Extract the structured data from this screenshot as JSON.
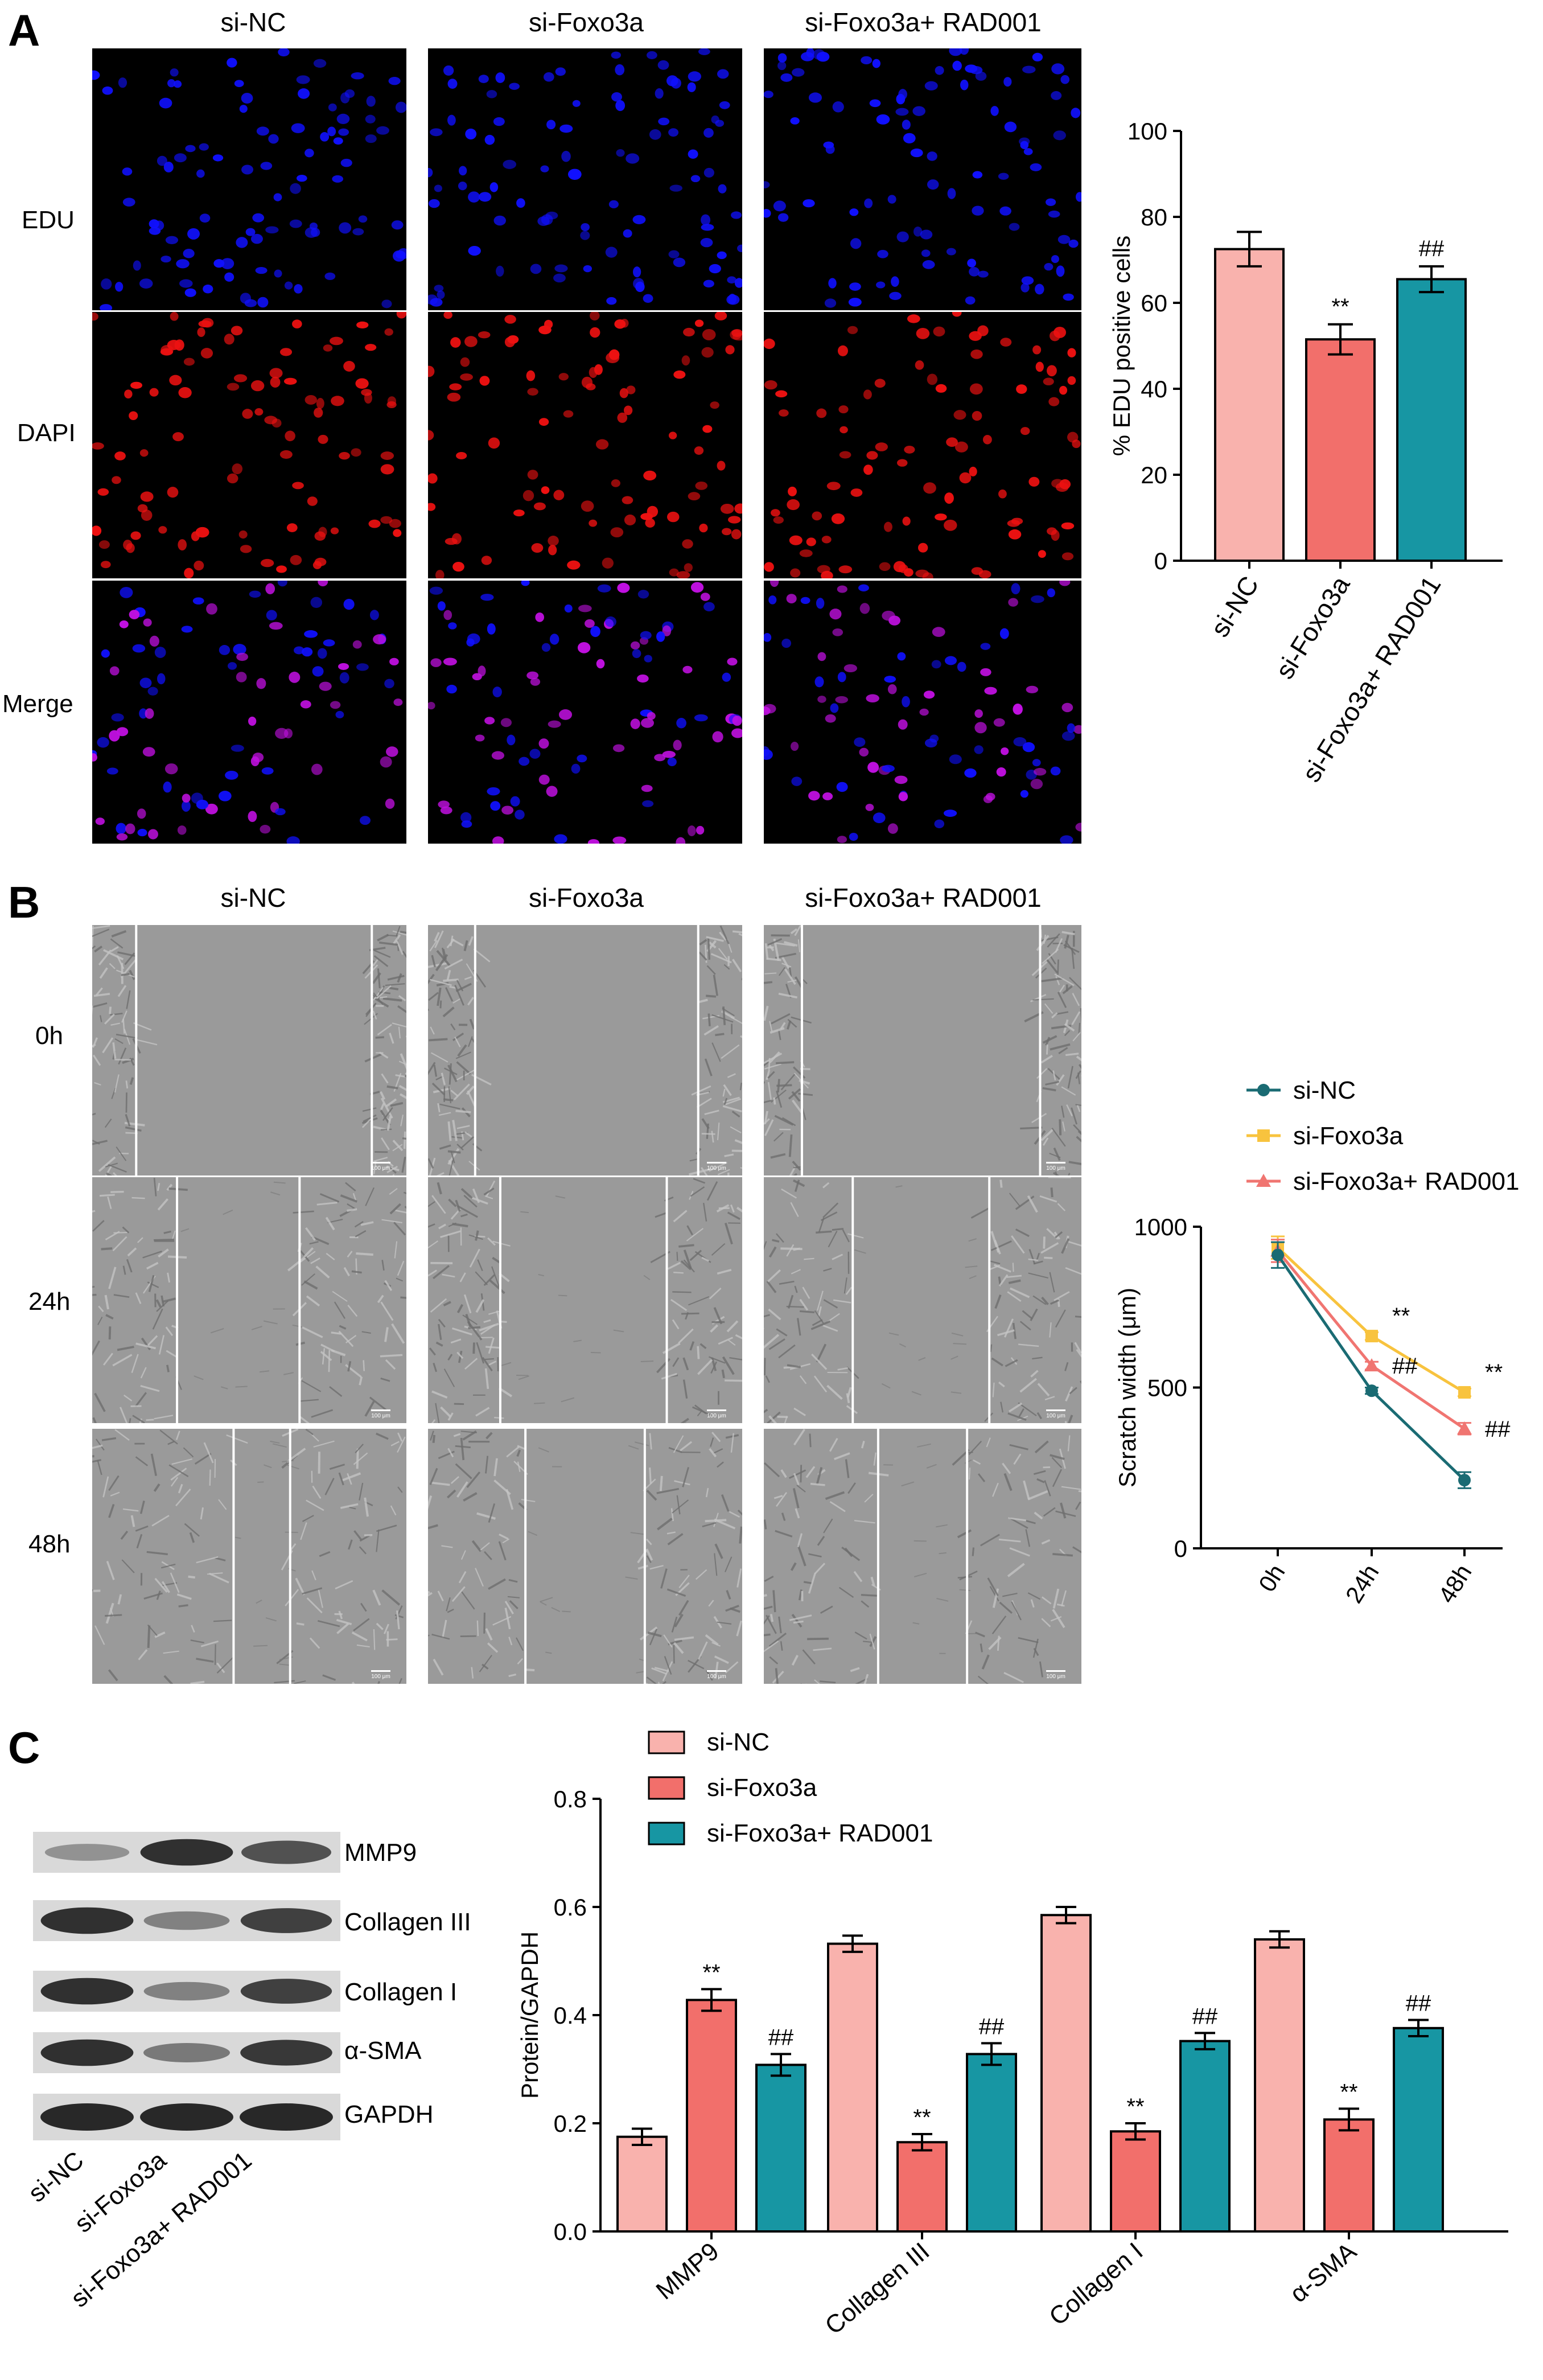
{
  "panel_a": {
    "letter": "A",
    "columns": [
      "si-NC",
      "si-Foxo3a",
      "si-Foxo3a+ RAD001"
    ],
    "rows": [
      "EDU",
      "DAPI",
      "Merge"
    ]
  },
  "panel_b": {
    "letter": "B",
    "columns": [
      "si-NC",
      "si-Foxo3a",
      "si-Foxo3a+ RAD001"
    ],
    "rows": [
      "0h",
      "24h",
      "48h"
    ],
    "scale_text": "100 μm"
  },
  "panel_c": {
    "letter": "C",
    "blot_rows": [
      "MMP9",
      "Collagen III",
      "Collagen I",
      "α-SMA",
      "GAPDH"
    ],
    "lanes": [
      "si-NC",
      "si-Foxo3a",
      "si-Foxo3a+ RAD001"
    ]
  },
  "colors": {
    "si_nc": "#f9b2ad",
    "si_foxo3a": "#f26f6b",
    "rad001": "#1796a3",
    "line_nc": "#1a6b73",
    "line_foxo": "#f8c33e",
    "line_rad": "#f07571",
    "edu_nuclei": "#1010ff",
    "dapi_nuclei": "#ee1111",
    "merge_nuclei": "#c010e0"
  },
  "chart_data": [
    {
      "type": "bar",
      "panel": "A",
      "categories": [
        "si-NC",
        "si-Foxo3a",
        "si-Foxo3a+ RAD001"
      ],
      "values": [
        72.5,
        51.5,
        65.5
      ],
      "errors": [
        4.0,
        3.5,
        3.0
      ],
      "annotations": [
        "",
        "**",
        "##"
      ],
      "ylabel": "% EDU positive cells",
      "ylim": [
        0,
        100
      ],
      "yticks": [
        "0",
        "20",
        "40",
        "60",
        "80",
        "100"
      ]
    },
    {
      "type": "line",
      "panel": "B",
      "x": [
        "0h",
        "24h",
        "48h"
      ],
      "series": [
        {
          "name": "si-NC",
          "values": [
            912,
            490,
            212
          ],
          "errors": [
            40,
            10,
            25
          ],
          "marker": "circle"
        },
        {
          "name": "si-Foxo3a",
          "values": [
            935,
            660,
            485
          ],
          "errors": [
            35,
            12,
            12
          ],
          "marker": "square",
          "annotations": [
            "",
            "**",
            "**"
          ]
        },
        {
          "name": "si-Foxo3a+ RAD001",
          "values": [
            925,
            568,
            372
          ],
          "errors": [
            35,
            12,
            18
          ],
          "marker": "triangle",
          "annotations": [
            "",
            "##",
            "##"
          ]
        }
      ],
      "ylabel": "Scratch width (μm)",
      "ylim": [
        0,
        1000
      ],
      "yticks": [
        "0",
        "500",
        "1000"
      ],
      "legend": "top"
    },
    {
      "type": "bar",
      "panel": "C",
      "categories": [
        "MMP9",
        "Collagen III",
        "Collagen I",
        "α-SMA"
      ],
      "series": [
        {
          "name": "si-NC",
          "values": [
            0.175,
            0.532,
            0.585,
            0.54
          ],
          "errors": [
            0.015,
            0.015,
            0.015,
            0.015
          ]
        },
        {
          "name": "si-Foxo3a",
          "values": [
            0.428,
            0.165,
            0.185,
            0.207
          ],
          "errors": [
            0.02,
            0.015,
            0.015,
            0.02
          ],
          "annotations": [
            "**",
            "**",
            "**",
            "**"
          ]
        },
        {
          "name": "si-Foxo3a+ RAD001",
          "values": [
            0.308,
            0.328,
            0.352,
            0.376
          ],
          "errors": [
            0.02,
            0.02,
            0.015,
            0.015
          ],
          "annotations": [
            "##",
            "##",
            "##",
            "##"
          ]
        }
      ],
      "ylabel": "Protein/GAPDH",
      "ylim": [
        0,
        0.8
      ],
      "yticks": [
        "0.0",
        "0.2",
        "0.4",
        "0.6",
        "0.8"
      ],
      "legend": "top"
    }
  ]
}
